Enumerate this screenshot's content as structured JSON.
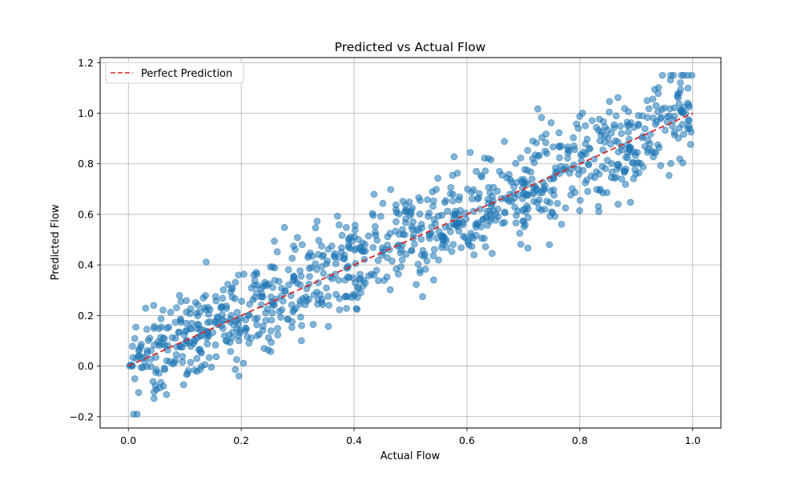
{
  "chart_data": {
    "type": "scatter",
    "title": "Predicted vs Actual Flow",
    "xlabel": "Actual Flow",
    "ylabel": "Predicted Flow",
    "xlim": [
      -0.05,
      1.05
    ],
    "ylim": [
      -0.245,
      1.22
    ],
    "xticks": [
      0.0,
      0.2,
      0.4,
      0.6,
      0.8,
      1.0
    ],
    "yticks": [
      -0.2,
      0.0,
      0.2,
      0.4,
      0.6,
      0.8,
      1.0,
      1.2
    ],
    "grid": true,
    "legend": {
      "position": "top-left",
      "entries": [
        {
          "label": "Perfect Prediction",
          "style": "dashed-line",
          "color": "#d62728"
        }
      ]
    },
    "reference_line": {
      "name": "Perfect Prediction",
      "x": [
        0.0,
        1.0
      ],
      "y": [
        0.0,
        1.0
      ],
      "color": "#d62728"
    },
    "series": [
      {
        "name": "Predictions",
        "color": "#1f77b4",
        "opacity": 0.55,
        "points_description": "approximately 1000 points scattered around y = x, noise sd ~0.1 over x in [0, 1]",
        "count": 1000,
        "trend_slope": 1.0,
        "trend_intercept": 0.0,
        "noise_sd": 0.1,
        "seed": 42
      }
    ]
  }
}
